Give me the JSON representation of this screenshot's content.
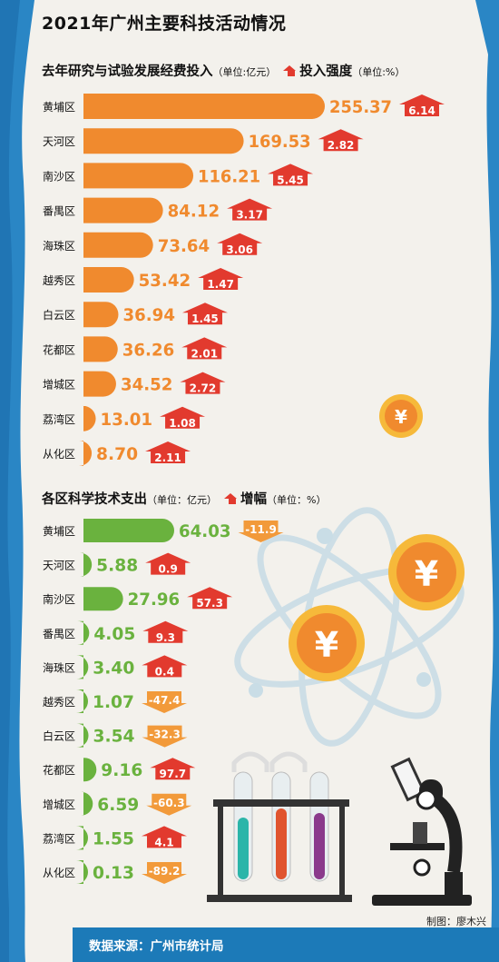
{
  "title": "2021年广州主要科技活动情况",
  "section1": {
    "heading": "去年研究与试验发展经费投入",
    "unit": "（单位:亿元）",
    "legend_label": "投入强度",
    "legend_unit": "（单位:%）"
  },
  "section2": {
    "heading": "各区科学技术支出",
    "unit": "（单位：亿元）",
    "legend_label": "增幅",
    "legend_unit": "（单位：%）"
  },
  "credit": "制图：廖木兴",
  "source": "数据来源：广州市统计局",
  "colors": {
    "orange_bar": "#f08a2e",
    "green_bar": "#6ab23e",
    "red_arrow": "#e23a2e",
    "orange_arrow": "#f29a3a",
    "footer": "#1c7ab8"
  },
  "chart_data": [
    {
      "type": "bar",
      "title": "去年研究与试验发展经费投入",
      "categories": [
        "黄埔区",
        "天河区",
        "南沙区",
        "番禺区",
        "海珠区",
        "越秀区",
        "白云区",
        "花都区",
        "增城区",
        "荔湾区",
        "从化区"
      ],
      "series": [
        {
          "name": "去年研究与试验发展经费投入",
          "values": [
            255.37,
            169.53,
            116.21,
            84.12,
            73.64,
            53.42,
            36.94,
            36.26,
            34.52,
            13.01,
            8.7
          ],
          "labels": [
            "255.37",
            "169.53",
            "116.21",
            "84.12",
            "73.64",
            "53.42",
            "36.94",
            "36.26",
            "34.52",
            "13.01",
            "8.70"
          ]
        },
        {
          "name": "投入强度",
          "values": [
            6.14,
            2.82,
            5.45,
            3.17,
            3.06,
            1.47,
            1.45,
            2.01,
            2.72,
            1.08,
            2.11
          ],
          "labels": [
            "6.14",
            "2.82",
            "5.45",
            "3.17",
            "3.06",
            "1.47",
            "1.45",
            "2.01",
            "2.72",
            "1.08",
            "2.11"
          ]
        }
      ]
    },
    {
      "type": "bar",
      "title": "各区科学技术支出",
      "categories": [
        "黄埔区",
        "天河区",
        "南沙区",
        "番禺区",
        "海珠区",
        "越秀区",
        "白云区",
        "花都区",
        "增城区",
        "荔湾区",
        "从化区"
      ],
      "series": [
        {
          "name": "各区科学技术支出",
          "values": [
            64.03,
            5.88,
            27.96,
            4.05,
            3.4,
            1.07,
            3.54,
            9.16,
            6.59,
            1.55,
            0.13
          ],
          "labels": [
            "64.03",
            "5.88",
            "27.96",
            "4.05",
            "3.40",
            "1.07",
            "3.54",
            "9.16",
            "6.59",
            "1.55",
            "0.13"
          ]
        },
        {
          "name": "增幅",
          "values": [
            -11.9,
            0.9,
            57.3,
            9.3,
            0.4,
            -47.4,
            -32.3,
            97.7,
            -60.3,
            4.1,
            -89.2
          ],
          "labels": [
            "-11.9",
            "0.9",
            "57.3",
            "9.3",
            "0.4",
            "-47.4",
            "-32.3",
            "97.7",
            "-60.3",
            "4.1",
            "-89.2"
          ]
        }
      ]
    }
  ]
}
